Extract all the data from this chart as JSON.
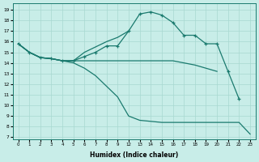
{
  "bg_color": "#c8ede8",
  "grid_color": "#a8d8d0",
  "line_color": "#1a7a6e",
  "xlabel": "Humidex (Indice chaleur)",
  "ylim": [
    6.8,
    19.6
  ],
  "yticks": [
    7,
    8,
    9,
    10,
    11,
    12,
    13,
    14,
    15,
    16,
    17,
    18,
    19
  ],
  "xtick_labels": [
    "0",
    "1",
    "2",
    "3",
    "4",
    "5",
    "6",
    "7",
    "8",
    "9",
    "12",
    "13",
    "14",
    "15",
    "16",
    "17",
    "18",
    "19",
    "20",
    "21",
    "22",
    "23"
  ],
  "curves": [
    {
      "xi": [
        0,
        1,
        2,
        3,
        4,
        5,
        6,
        7,
        8,
        9,
        10,
        11,
        12,
        13,
        14,
        15,
        16,
        17,
        18,
        19,
        20
      ],
      "y": [
        15.8,
        15.0,
        14.5,
        14.4,
        14.2,
        14.2,
        14.6,
        15.0,
        15.6,
        15.6,
        17.0,
        18.6,
        18.8,
        18.5,
        17.8,
        16.6,
        16.6,
        15.8,
        15.8,
        13.2,
        10.6
      ],
      "marker": true
    },
    {
      "xi": [
        0,
        1,
        2,
        3,
        4,
        5,
        6,
        7,
        8,
        9,
        10
      ],
      "y": [
        15.8,
        15.0,
        14.5,
        14.4,
        14.2,
        14.2,
        15.0,
        15.5,
        16.0,
        16.4,
        17.0
      ],
      "marker": false
    },
    {
      "xi": [
        0,
        1,
        2,
        3,
        4,
        5,
        6,
        7,
        8,
        9,
        10,
        11,
        12,
        13,
        14,
        15,
        16,
        17,
        18
      ],
      "y": [
        15.8,
        15.0,
        14.5,
        14.4,
        14.2,
        14.2,
        14.2,
        14.2,
        14.2,
        14.2,
        14.2,
        14.2,
        14.2,
        14.2,
        14.2,
        14.0,
        13.8,
        13.5,
        13.2
      ],
      "marker": false
    },
    {
      "xi": [
        0,
        1,
        2,
        3,
        4,
        5,
        6,
        7,
        8,
        9,
        10,
        11,
        12,
        13,
        14,
        15,
        16,
        17,
        18,
        19,
        20,
        21
      ],
      "y": [
        15.8,
        15.0,
        14.5,
        14.4,
        14.2,
        14.0,
        13.5,
        12.8,
        11.8,
        10.8,
        9.0,
        8.6,
        8.5,
        8.4,
        8.4,
        8.4,
        8.4,
        8.4,
        8.4,
        8.4,
        8.4,
        7.3
      ],
      "marker": false
    }
  ]
}
